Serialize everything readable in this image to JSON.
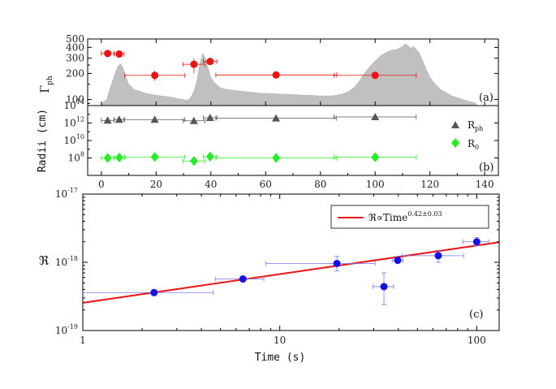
{
  "chart_data": [
    {
      "id": "a",
      "type": "scatter",
      "panel_label": "(a)",
      "ylabel": "Γ",
      "ylabel_sub": "ph",
      "xlim": [
        -5,
        145
      ],
      "ylim": [
        85,
        500
      ],
      "yscale": "log",
      "yticks": [
        100,
        200,
        300,
        400,
        500
      ],
      "ytick_labels": [
        "100",
        "200",
        "300",
        "400",
        "500"
      ],
      "background_lightcurve": {
        "color": "#c0c0c0",
        "t": [
          0,
          2,
          3,
          4,
          5,
          6,
          7,
          8,
          9,
          10,
          12,
          14,
          16,
          18,
          20,
          22,
          24,
          26,
          28,
          30,
          31,
          32,
          33,
          34,
          35,
          36,
          37,
          38,
          39,
          40,
          41,
          42,
          43,
          44,
          46,
          48,
          50,
          52,
          54,
          56,
          58,
          60,
          62,
          64,
          66,
          68,
          70,
          72,
          74,
          76,
          78,
          80,
          82,
          84,
          86,
          88,
          90,
          92,
          94,
          96,
          98,
          100,
          102,
          104,
          106,
          108,
          110,
          111,
          112,
          113,
          114,
          115,
          116,
          117,
          118,
          120,
          122,
          124,
          126,
          128,
          130,
          132,
          134,
          136,
          137
        ],
        "y": [
          90,
          100,
          130,
          160,
          200,
          240,
          260,
          230,
          180,
          150,
          130,
          125,
          118,
          115,
          112,
          110,
          108,
          106,
          102,
          100,
          98,
          100,
          110,
          130,
          170,
          260,
          340,
          300,
          230,
          180,
          160,
          150,
          140,
          135,
          130,
          128,
          126,
          124,
          122,
          120,
          118,
          118,
          117,
          116,
          115,
          115,
          114,
          113,
          112,
          112,
          111,
          110,
          110,
          110,
          112,
          116,
          122,
          135,
          160,
          200,
          240,
          280,
          320,
          350,
          370,
          380,
          410,
          440,
          420,
          390,
          410,
          380,
          350,
          300,
          250,
          180,
          150,
          130,
          120,
          110,
          105,
          100,
          96,
          92,
          90
        ]
      },
      "color": "#ee1111",
      "points": [
        {
          "x": 2.3,
          "y": 340,
          "xerr": [
            2.3,
            2.3
          ],
          "yerr": [
            20,
            20
          ]
        },
        {
          "x": 6.5,
          "y": 335,
          "xerr": [
            1.8,
            1.8
          ],
          "yerr": [
            18,
            18
          ]
        },
        {
          "x": 19.5,
          "y": 190,
          "xerr": [
            11,
            11
          ],
          "yerr": [
            25,
            25
          ]
        },
        {
          "x": 33.8,
          "y": 255,
          "xerr": [
            4,
            4
          ],
          "yerr": [
            55,
            45
          ]
        },
        {
          "x": 39.7,
          "y": 275,
          "xerr": [
            2.5,
            2.5
          ],
          "yerr": [
            22,
            22
          ]
        },
        {
          "x": 63.8,
          "y": 192,
          "xerr": [
            22,
            22
          ],
          "yerr": [
            10,
            10
          ]
        },
        {
          "x": 100,
          "y": 190,
          "xerr": [
            15,
            15
          ],
          "yerr": [
            8,
            8
          ]
        }
      ]
    },
    {
      "id": "b",
      "type": "scatter",
      "panel_label": "(b)",
      "ylabel": "Radii (cm)",
      "xlim": [
        -5,
        145
      ],
      "ylim": [
        1000000,
        100000000000000
      ],
      "yscale": "log",
      "yticks": [
        100000000,
        10000000000,
        1000000000000,
        100000000000000
      ],
      "ytick_labels": [
        {
          "base": "10",
          "exp": "8"
        },
        {
          "base": "10",
          "exp": "10"
        },
        {
          "base": "10",
          "exp": "12"
        },
        {
          "base": "10",
          "exp": "14"
        }
      ],
      "xticks": [
        0,
        20,
        40,
        60,
        80,
        100,
        120,
        140
      ],
      "xtick_labels": [
        "0",
        "20",
        "40",
        "60",
        "80",
        "100",
        "120",
        "140"
      ],
      "legend": [
        {
          "label": "R",
          "sub": "ph",
          "marker": "triangle",
          "color": "#555555"
        },
        {
          "label": "R",
          "sub": "0",
          "marker": "diamond",
          "color": "#22ee22"
        }
      ],
      "series": [
        {
          "name": "R_ph",
          "marker": "triangle",
          "color": "#555555",
          "points": [
            {
              "x": 2.3,
              "y": 2000000000000,
              "xerr": [
                2.3,
                2.3
              ]
            },
            {
              "x": 6.5,
              "y": 2500000000000,
              "xerr": [
                1.8,
                1.8
              ]
            },
            {
              "x": 19.5,
              "y": 2500000000000,
              "xerr": [
                11,
                11
              ]
            },
            {
              "x": 33.8,
              "y": 1800000000000,
              "xerr": [
                4,
                4
              ]
            },
            {
              "x": 39.7,
              "y": 4000000000000,
              "xerr": [
                2.5,
                2.5
              ]
            },
            {
              "x": 63.8,
              "y": 3500000000000,
              "xerr": [
                22,
                22
              ]
            },
            {
              "x": 100,
              "y": 5000000000000,
              "xerr": [
                15,
                15
              ]
            }
          ]
        },
        {
          "name": "R_0",
          "marker": "diamond",
          "color": "#22ee22",
          "points": [
            {
              "x": 2.3,
              "y": 100000000,
              "xerr": [
                2.3,
                2.3
              ]
            },
            {
              "x": 6.5,
              "y": 110000000,
              "xerr": [
                1.8,
                1.8
              ]
            },
            {
              "x": 19.5,
              "y": 130000000,
              "xerr": [
                11,
                11
              ]
            },
            {
              "x": 33.8,
              "y": 45000000,
              "xerr": [
                4,
                4
              ],
              "yerr_factor": [
                0.5,
                2.2
              ]
            },
            {
              "x": 39.7,
              "y": 140000000,
              "xerr": [
                2.5,
                2.5
              ],
              "yerr_factor": [
                0.7,
                1.4
              ]
            },
            {
              "x": 63.8,
              "y": 100000000,
              "xerr": [
                22,
                22
              ]
            },
            {
              "x": 100,
              "y": 120000000,
              "xerr": [
                15,
                15
              ]
            }
          ]
        }
      ]
    },
    {
      "id": "c",
      "type": "scatter",
      "panel_label": "(c)",
      "xlabel": "Time (s)",
      "ylabel": "ℜ",
      "xlim": [
        1,
        130
      ],
      "ylim": [
        1e-19,
        1e-17
      ],
      "xscale": "log",
      "yscale": "log",
      "xticks": [
        1,
        10,
        100
      ],
      "xtick_labels": [
        "1",
        "10",
        "100"
      ],
      "yticks": [
        1e-19,
        1e-18,
        1e-17
      ],
      "ytick_labels": [
        {
          "base": "10",
          "exp": "-19"
        },
        {
          "base": "10",
          "exp": "-18"
        },
        {
          "base": "10",
          "exp": "-17"
        }
      ],
      "legend": [
        {
          "label": "ℜ∝Time",
          "sup": "0.42±0.03",
          "color": "#ee1111",
          "marker": "line"
        }
      ],
      "fit": {
        "amplitude": 2.55e-19,
        "index": 0.42,
        "color": "#ee1111"
      },
      "color": "#1111ee",
      "errorbar_color": "#7777ee",
      "points": [
        {
          "x": 2.3,
          "y": 3.6e-19,
          "xlo": 1.0,
          "xhi": 4.6,
          "ylo": 3.3e-19,
          "yhi": 3.9e-19
        },
        {
          "x": 6.5,
          "y": 5.7e-19,
          "xlo": 4.7,
          "xhi": 8.3,
          "ylo": 5.3e-19,
          "yhi": 6.1e-19
        },
        {
          "x": 19.5,
          "y": 9.6e-19,
          "xlo": 8.5,
          "xhi": 30.5,
          "ylo": 7.5e-19,
          "yhi": 1.22e-18
        },
        {
          "x": 33.8,
          "y": 4.4e-19,
          "xlo": 29.8,
          "xhi": 37.8,
          "ylo": 2.4e-19,
          "yhi": 7e-19
        },
        {
          "x": 39.7,
          "y": 1.07e-18,
          "xlo": 37.2,
          "xhi": 42.2,
          "ylo": 9.8e-19,
          "yhi": 1.17e-18
        },
        {
          "x": 63.8,
          "y": 1.25e-18,
          "xlo": 41.8,
          "xhi": 85.8,
          "ylo": 1e-18,
          "yhi": 1.5e-18
        },
        {
          "x": 100,
          "y": 2e-18,
          "xlo": 85,
          "xhi": 115,
          "ylo": 1.75e-18,
          "yhi": 2.3e-18
        }
      ]
    }
  ]
}
